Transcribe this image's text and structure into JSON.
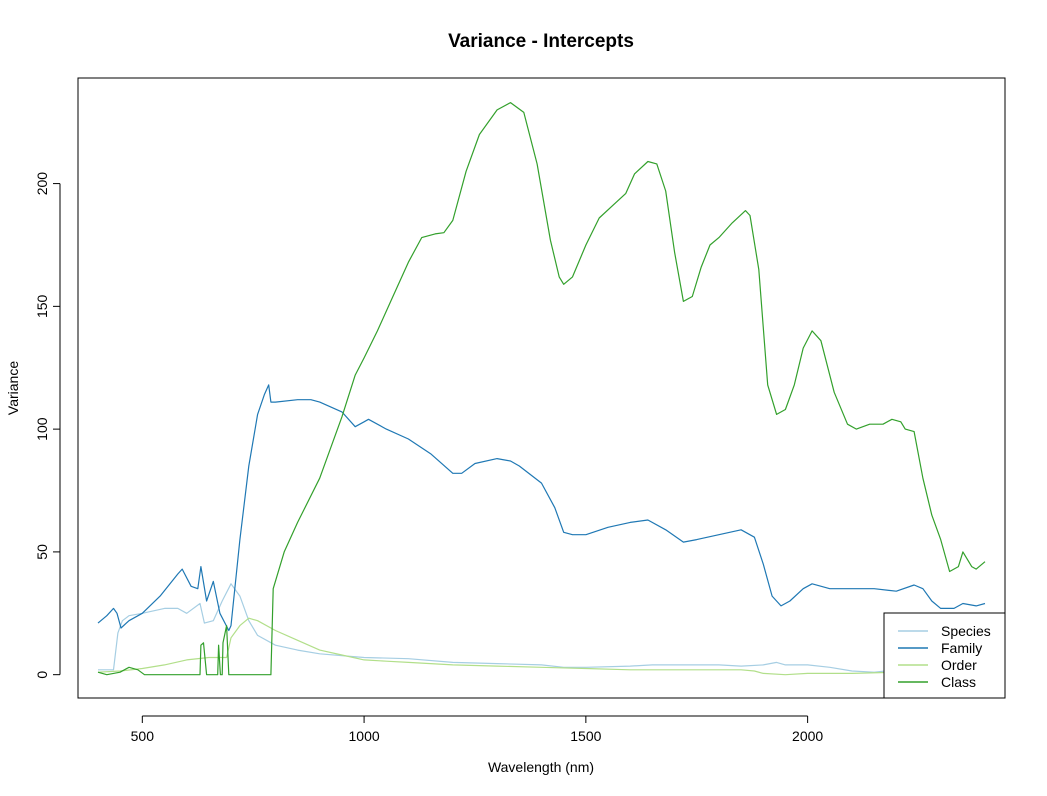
{
  "chart_data": {
    "type": "line",
    "title": "Variance - Intercepts",
    "xlabel": "Wavelength (nm)",
    "ylabel": "Variance",
    "xlim": [
      355,
      2445
    ],
    "ylim": [
      -9.5,
      243
    ],
    "xticks": [
      500,
      1000,
      1500,
      2000
    ],
    "yticks": [
      0,
      50,
      100,
      150,
      200
    ],
    "grid": false,
    "legend_position": "bottom-right",
    "series": [
      {
        "name": "Species",
        "color": "#a6cee3",
        "points": [
          [
            400,
            2
          ],
          [
            435,
            2
          ],
          [
            445,
            17
          ],
          [
            455,
            22
          ],
          [
            470,
            24
          ],
          [
            500,
            25
          ],
          [
            550,
            27
          ],
          [
            580,
            27
          ],
          [
            600,
            25
          ],
          [
            630,
            29
          ],
          [
            640,
            21
          ],
          [
            660,
            22
          ],
          [
            680,
            30
          ],
          [
            700,
            37
          ],
          [
            720,
            32
          ],
          [
            740,
            22
          ],
          [
            760,
            16
          ],
          [
            800,
            12
          ],
          [
            850,
            10
          ],
          [
            900,
            8.5
          ],
          [
            1000,
            7
          ],
          [
            1100,
            6.5
          ],
          [
            1200,
            5
          ],
          [
            1300,
            4.5
          ],
          [
            1400,
            4
          ],
          [
            1450,
            3
          ],
          [
            1500,
            3
          ],
          [
            1600,
            3.5
          ],
          [
            1650,
            4
          ],
          [
            1700,
            4
          ],
          [
            1800,
            4
          ],
          [
            1850,
            3.5
          ],
          [
            1900,
            4
          ],
          [
            1930,
            5
          ],
          [
            1950,
            4
          ],
          [
            2000,
            4
          ],
          [
            2050,
            3
          ],
          [
            2100,
            1.5
          ],
          [
            2150,
            1
          ],
          [
            2200,
            2
          ],
          [
            2280,
            2
          ],
          [
            2300,
            1.5
          ],
          [
            2350,
            2
          ],
          [
            2400,
            2
          ]
        ]
      },
      {
        "name": "Family",
        "color": "#1f78b4",
        "points": [
          [
            400,
            21
          ],
          [
            420,
            24
          ],
          [
            435,
            27
          ],
          [
            443,
            25
          ],
          [
            452,
            19
          ],
          [
            470,
            22
          ],
          [
            500,
            25
          ],
          [
            540,
            32
          ],
          [
            580,
            41
          ],
          [
            590,
            43
          ],
          [
            610,
            36
          ],
          [
            625,
            35
          ],
          [
            632,
            44
          ],
          [
            645,
            30
          ],
          [
            660,
            38
          ],
          [
            675,
            25
          ],
          [
            695,
            18
          ],
          [
            700,
            20
          ],
          [
            720,
            55
          ],
          [
            740,
            85
          ],
          [
            760,
            106
          ],
          [
            775,
            114
          ],
          [
            785,
            118
          ],
          [
            790,
            111
          ],
          [
            800,
            111
          ],
          [
            850,
            112
          ],
          [
            880,
            112
          ],
          [
            900,
            111
          ],
          [
            950,
            107
          ],
          [
            980,
            101
          ],
          [
            1000,
            103
          ],
          [
            1010,
            104
          ],
          [
            1050,
            100
          ],
          [
            1100,
            96
          ],
          [
            1150,
            90
          ],
          [
            1200,
            82
          ],
          [
            1220,
            82
          ],
          [
            1250,
            86
          ],
          [
            1300,
            88
          ],
          [
            1330,
            87
          ],
          [
            1350,
            85
          ],
          [
            1400,
            78
          ],
          [
            1430,
            68
          ],
          [
            1450,
            58
          ],
          [
            1470,
            57
          ],
          [
            1500,
            57
          ],
          [
            1550,
            60
          ],
          [
            1600,
            62
          ],
          [
            1640,
            63
          ],
          [
            1680,
            59
          ],
          [
            1720,
            54
          ],
          [
            1750,
            55
          ],
          [
            1800,
            57
          ],
          [
            1850,
            59
          ],
          [
            1880,
            56
          ],
          [
            1900,
            45
          ],
          [
            1920,
            32
          ],
          [
            1940,
            28
          ],
          [
            1960,
            30
          ],
          [
            1990,
            35
          ],
          [
            2010,
            37
          ],
          [
            2050,
            35
          ],
          [
            2100,
            35
          ],
          [
            2150,
            35
          ],
          [
            2200,
            34
          ],
          [
            2240,
            36.5
          ],
          [
            2260,
            35
          ],
          [
            2280,
            30
          ],
          [
            2300,
            27
          ],
          [
            2330,
            27
          ],
          [
            2350,
            29
          ],
          [
            2380,
            28
          ],
          [
            2400,
            29
          ]
        ]
      },
      {
        "name": "Order",
        "color": "#b2df8a",
        "points": [
          [
            400,
            1
          ],
          [
            450,
            1.5
          ],
          [
            500,
            2.5
          ],
          [
            550,
            4
          ],
          [
            600,
            6
          ],
          [
            650,
            7
          ],
          [
            690,
            7
          ],
          [
            700,
            15
          ],
          [
            720,
            20
          ],
          [
            740,
            23
          ],
          [
            760,
            22
          ],
          [
            800,
            18
          ],
          [
            850,
            14
          ],
          [
            900,
            10
          ],
          [
            950,
            8
          ],
          [
            1000,
            6
          ],
          [
            1050,
            5.5
          ],
          [
            1100,
            5
          ],
          [
            1200,
            4
          ],
          [
            1300,
            3.5
          ],
          [
            1400,
            3
          ],
          [
            1500,
            2.5
          ],
          [
            1600,
            2
          ],
          [
            1700,
            2
          ],
          [
            1850,
            2
          ],
          [
            1880,
            1.5
          ],
          [
            1900,
            0.5
          ],
          [
            1950,
            0
          ],
          [
            2000,
            0.5
          ],
          [
            2100,
            0.5
          ],
          [
            2200,
            1
          ],
          [
            2300,
            1
          ],
          [
            2400,
            1
          ]
        ]
      },
      {
        "name": "Class",
        "color": "#33a02c",
        "points": [
          [
            400,
            1
          ],
          [
            420,
            0
          ],
          [
            450,
            1
          ],
          [
            470,
            3
          ],
          [
            490,
            2
          ],
          [
            505,
            0
          ],
          [
            530,
            0
          ],
          [
            630,
            0
          ],
          [
            632,
            12
          ],
          [
            638,
            13
          ],
          [
            645,
            0
          ],
          [
            670,
            0
          ],
          [
            672,
            12
          ],
          [
            676,
            0
          ],
          [
            680,
            0
          ],
          [
            682,
            13
          ],
          [
            690,
            20
          ],
          [
            695,
            0
          ],
          [
            780,
            0
          ],
          [
            790,
            0
          ],
          [
            795,
            35
          ],
          [
            820,
            50
          ],
          [
            850,
            62
          ],
          [
            900,
            80
          ],
          [
            950,
            105
          ],
          [
            980,
            122
          ],
          [
            1000,
            129
          ],
          [
            1030,
            140
          ],
          [
            1060,
            152
          ],
          [
            1100,
            168
          ],
          [
            1130,
            178
          ],
          [
            1160,
            179.5
          ],
          [
            1180,
            180
          ],
          [
            1200,
            185
          ],
          [
            1230,
            205
          ],
          [
            1260,
            220
          ],
          [
            1300,
            230
          ],
          [
            1330,
            233
          ],
          [
            1360,
            229
          ],
          [
            1390,
            208
          ],
          [
            1420,
            177
          ],
          [
            1440,
            162
          ],
          [
            1450,
            159
          ],
          [
            1470,
            162
          ],
          [
            1500,
            175
          ],
          [
            1530,
            186
          ],
          [
            1560,
            191
          ],
          [
            1590,
            196
          ],
          [
            1610,
            204
          ],
          [
            1640,
            209
          ],
          [
            1660,
            208
          ],
          [
            1680,
            197
          ],
          [
            1700,
            172
          ],
          [
            1720,
            152
          ],
          [
            1740,
            154
          ],
          [
            1760,
            166
          ],
          [
            1780,
            175
          ],
          [
            1800,
            178
          ],
          [
            1830,
            184
          ],
          [
            1860,
            189
          ],
          [
            1870,
            187
          ],
          [
            1890,
            165
          ],
          [
            1910,
            118
          ],
          [
            1930,
            106
          ],
          [
            1950,
            108
          ],
          [
            1970,
            118
          ],
          [
            1990,
            133
          ],
          [
            2010,
            140
          ],
          [
            2030,
            136
          ],
          [
            2060,
            115
          ],
          [
            2090,
            102
          ],
          [
            2110,
            100
          ],
          [
            2140,
            102
          ],
          [
            2170,
            102
          ],
          [
            2190,
            104
          ],
          [
            2210,
            103
          ],
          [
            2220,
            100
          ],
          [
            2240,
            99
          ],
          [
            2260,
            80
          ],
          [
            2280,
            65
          ],
          [
            2300,
            55
          ],
          [
            2320,
            42
          ],
          [
            2340,
            44
          ],
          [
            2350,
            50
          ],
          [
            2370,
            44
          ],
          [
            2380,
            43
          ],
          [
            2400,
            46
          ]
        ]
      }
    ]
  }
}
